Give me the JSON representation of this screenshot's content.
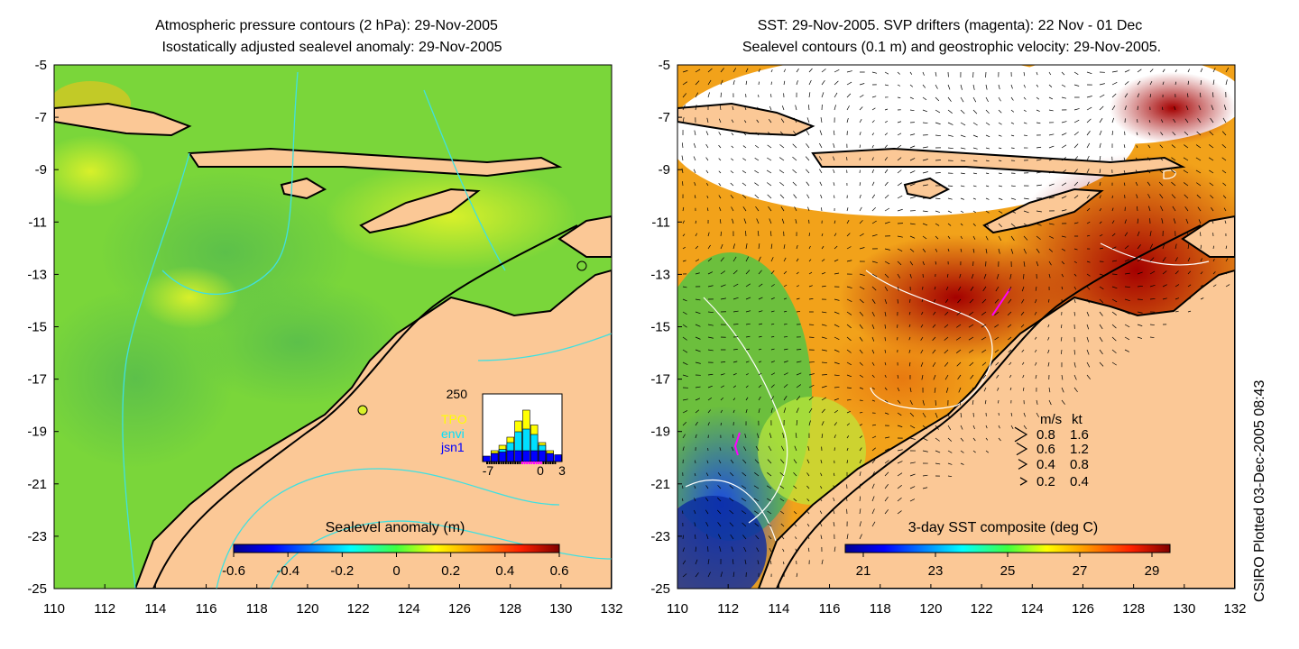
{
  "left_panel": {
    "title_line1": "Atmospheric pressure contours (2 hPa): 29-Nov-2005",
    "title_line2": "Isostatically adjusted sealevel anomaly: 29-Nov-2005",
    "colorbar_label": "Sealevel anomaly (m)",
    "colorbar_ticks": [
      "-0.6",
      "-0.4",
      "-0.2",
      "0",
      "0.2",
      "0.4",
      "0.6"
    ],
    "inset": {
      "ymax_label": "250",
      "x_ticks": [
        "-7",
        "0",
        "3"
      ],
      "legend": [
        {
          "label": "TPO",
          "color": "#ffff00"
        },
        {
          "label": "envi",
          "color": "#00e0ff"
        },
        {
          "label": "jsn1",
          "color": "#0000ff"
        }
      ]
    }
  },
  "right_panel": {
    "title_line1": "SST: 29-Nov-2005. SVP drifters (magenta): 22 Nov - 01 Dec",
    "title_line2": "Sealevel contours (0.1 m) and geostrophic velocity: 29-Nov-2005.",
    "colorbar_label": "3-day SST composite (deg C)",
    "colorbar_ticks": [
      "21",
      "23",
      "25",
      "27",
      "29"
    ],
    "velocity_key": {
      "header_ms": "m/s",
      "header_kt": "kt",
      "rows": [
        {
          "ms": "0.8",
          "kt": "1.6"
        },
        {
          "ms": "0.6",
          "kt": "1.2"
        },
        {
          "ms": "0.4",
          "kt": "0.8"
        },
        {
          "ms": "0.2",
          "kt": "0.4"
        }
      ]
    }
  },
  "side_credit": "CSIRO Plotted 03-Dec-2005 08:43",
  "colors": {
    "land": "#fbc896",
    "coast": "#000000",
    "pressure_contour": "#40e0e0",
    "sealevel_contour": "#ffffff",
    "drifter": "#ff00ff"
  },
  "chart_data": [
    {
      "type": "heatmap",
      "title": "Atmospheric pressure contours (2 hPa): 29-Nov-2005 / Isostatically adjusted sealevel anomaly: 29-Nov-2005",
      "x_ticks": [
        "110",
        "112",
        "114",
        "116",
        "118",
        "120",
        "122",
        "124",
        "126",
        "128",
        "130",
        "132"
      ],
      "y_ticks": [
        "-5",
        "-7",
        "-9",
        "-11",
        "-13",
        "-15",
        "-17",
        "-19",
        "-21",
        "-23",
        "-25"
      ],
      "xlim": [
        110,
        132
      ],
      "ylim": [
        -25,
        -5
      ],
      "colorbar": {
        "label": "Sealevel anomaly (m)",
        "range": [
          -0.6,
          0.6
        ],
        "colormap": "jet"
      },
      "typical_value_range": [
        0.0,
        0.3
      ]
    },
    {
      "type": "heatmap",
      "title": "SST: 29-Nov-2005. SVP drifters (magenta): 22 Nov - 01 Dec / Sealevel contours (0.1 m) and geostrophic velocity: 29-Nov-2005.",
      "x_ticks": [
        "110",
        "112",
        "114",
        "116",
        "118",
        "120",
        "122",
        "124",
        "126",
        "128",
        "130",
        "132"
      ],
      "y_ticks": [
        "-5",
        "-7",
        "-9",
        "-11",
        "-13",
        "-15",
        "-17",
        "-19",
        "-21",
        "-23",
        "-25"
      ],
      "xlim": [
        110,
        132
      ],
      "ylim": [
        -25,
        -5
      ],
      "colorbar": {
        "label": "3-day SST composite (deg C)",
        "range": [
          20.5,
          29.5
        ],
        "colormap": "jet"
      },
      "velocity_scale_ms": [
        0.8,
        0.6,
        0.4,
        0.2
      ],
      "velocity_scale_kt": [
        1.6,
        1.2,
        0.8,
        0.4
      ]
    },
    {
      "type": "bar",
      "title": "",
      "ylim": [
        0,
        250
      ],
      "x_range": [
        -7,
        3
      ],
      "series": [
        {
          "name": "TPO",
          "values": [
            0,
            40,
            60,
            90,
            150,
            190,
            135,
            70,
            40,
            0
          ]
        },
        {
          "name": "envi",
          "values": [
            0,
            30,
            45,
            70,
            110,
            120,
            100,
            60,
            30,
            0
          ]
        },
        {
          "name": "jsn1",
          "values": [
            20,
            30,
            35,
            40,
            40,
            40,
            40,
            40,
            30,
            25
          ]
        }
      ]
    }
  ]
}
